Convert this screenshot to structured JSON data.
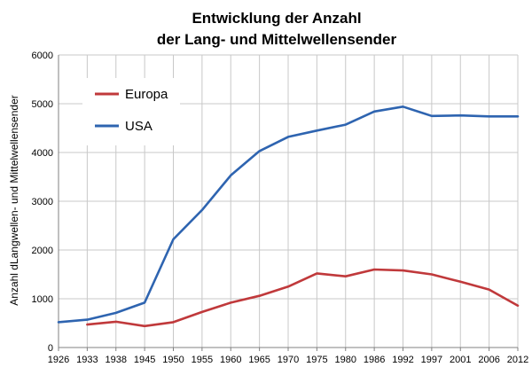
{
  "chart_data": {
    "type": "line",
    "title": [
      "Entwicklung der Anzahl",
      "der Lang- und Mittelwellensender"
    ],
    "xlabel": "",
    "ylabel": "Anzahl dLangwellen- und Mittelwellensender",
    "categories": [
      "1926",
      "1933",
      "1938",
      "1945",
      "1950",
      "1955",
      "1960",
      "1965",
      "1970",
      "1975",
      "1980",
      "1986",
      "1992",
      "1997",
      "2001",
      "2006",
      "2012"
    ],
    "ylim": [
      0,
      6000
    ],
    "yticks": [
      "0",
      "1000",
      "2000",
      "3000",
      "4000",
      "5000",
      "6000"
    ],
    "grid": true,
    "legend_position": "top-left",
    "series": [
      {
        "name": "Europa",
        "color": "#c0393b",
        "values": [
          null,
          470,
          530,
          440,
          520,
          730,
          920,
          1060,
          1250,
          1520,
          1460,
          1600,
          1580,
          1500,
          1350,
          1190,
          860
        ]
      },
      {
        "name": "USA",
        "color": "#2e64b0",
        "values": [
          520,
          570,
          710,
          920,
          2220,
          2820,
          3530,
          4030,
          4320,
          4450,
          4570,
          4840,
          4940,
          4750,
          4760,
          4740,
          4740
        ]
      }
    ]
  }
}
